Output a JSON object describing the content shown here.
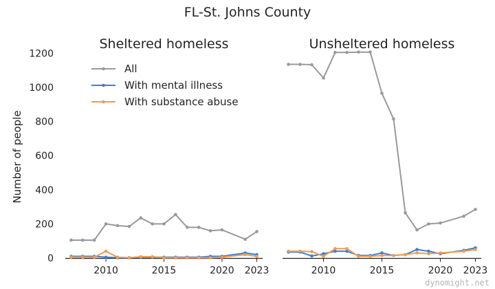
{
  "figure": {
    "suptitle": "FL-St. Johns County",
    "ylabel": "Number of people",
    "watermark": "dynomight.net"
  },
  "legend_entries": [
    {
      "name": "All",
      "color": "#999999"
    },
    {
      "name": "With mental illness",
      "color": "#3a7fd5"
    },
    {
      "name": "With substance abuse",
      "color": "#f59a4a"
    }
  ],
  "chart_data": [
    {
      "type": "line",
      "title": "Sheltered homeless",
      "ylabel": "Number of people",
      "x": [
        2007,
        2008,
        2009,
        2010,
        2011,
        2012,
        2013,
        2014,
        2015,
        2016,
        2017,
        2018,
        2019,
        2020,
        2022,
        2023
      ],
      "xlim": [
        2006.5,
        2023.5
      ],
      "ylim": [
        0,
        1250
      ],
      "xticks": [
        2010,
        2015,
        2020,
        2023
      ],
      "yticks": [
        0,
        200,
        400,
        600,
        800,
        1000,
        1200
      ],
      "grid": false,
      "legend": "top-left",
      "series": [
        {
          "name": "All",
          "color": "#999999",
          "values": [
            105,
            105,
            105,
            200,
            190,
            185,
            235,
            200,
            200,
            255,
            180,
            180,
            160,
            165,
            110,
            155
          ]
        },
        {
          "name": "With mental illness",
          "color": "#3a7fd5",
          "values": [
            10,
            10,
            10,
            5,
            2,
            2,
            5,
            5,
            5,
            5,
            5,
            5,
            10,
            10,
            30,
            20
          ]
        },
        {
          "name": "With substance abuse",
          "color": "#f59a4a",
          "values": [
            5,
            5,
            5,
            40,
            5,
            2,
            8,
            8,
            2,
            2,
            2,
            2,
            2,
            5,
            20,
            10
          ]
        }
      ]
    },
    {
      "type": "line",
      "title": "Unsheltered homeless",
      "x": [
        2007,
        2008,
        2009,
        2010,
        2011,
        2012,
        2013,
        2014,
        2015,
        2016,
        2017,
        2018,
        2019,
        2020,
        2022,
        2023
      ],
      "xlim": [
        2006.5,
        2023.5
      ],
      "ylim": [
        0,
        1250
      ],
      "xticks": [
        2010,
        2015,
        2020,
        2023
      ],
      "grid": false,
      "series": [
        {
          "name": "All",
          "color": "#999999",
          "values": [
            1135,
            1135,
            1133,
            1055,
            1205,
            1205,
            1207,
            1207,
            965,
            815,
            265,
            165,
            200,
            205,
            245,
            285
          ]
        },
        {
          "name": "With mental illness",
          "color": "#3a7fd5",
          "values": [
            35,
            35,
            12,
            25,
            40,
            40,
            15,
            15,
            30,
            15,
            20,
            50,
            40,
            25,
            45,
            60
          ]
        },
        {
          "name": "With substance abuse",
          "color": "#f59a4a",
          "values": [
            40,
            40,
            38,
            10,
            55,
            55,
            10,
            10,
            15,
            15,
            20,
            30,
            25,
            30,
            40,
            50
          ]
        }
      ]
    }
  ]
}
